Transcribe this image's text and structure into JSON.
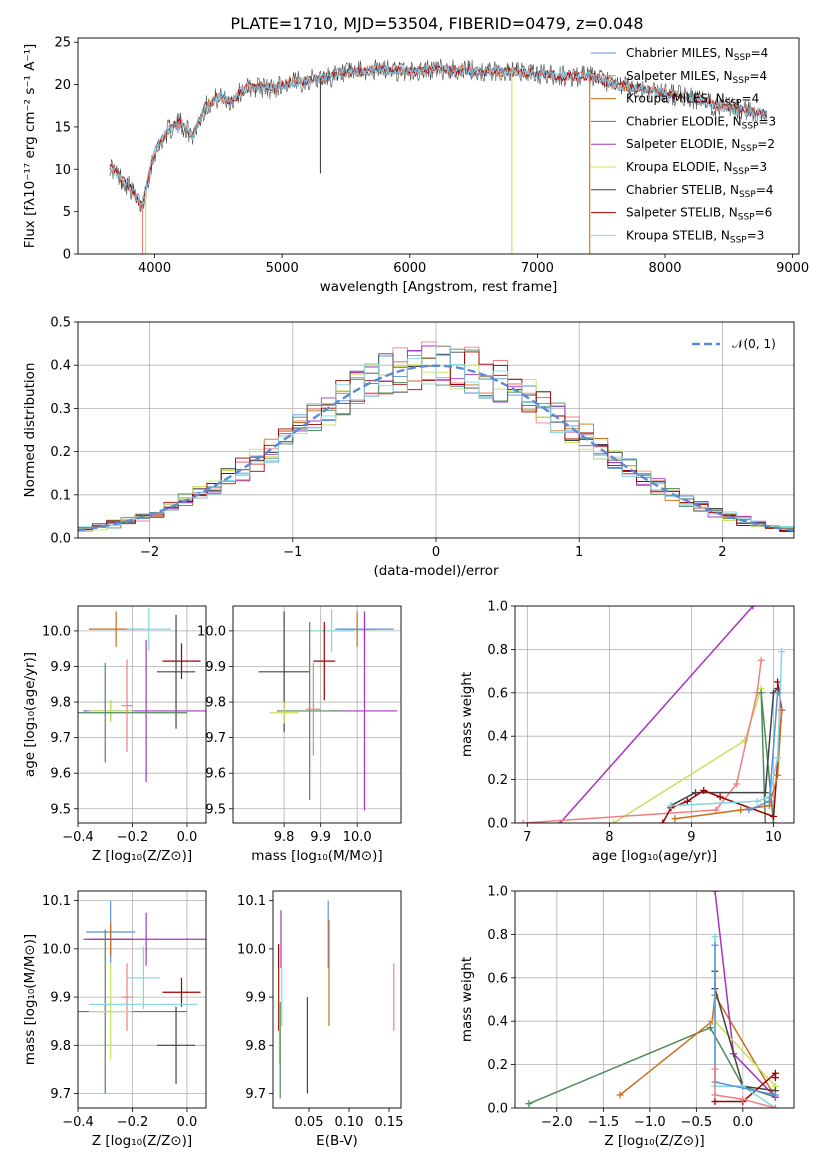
{
  "figure": {
    "title": "PLATE=1710, MJD=53504, FIBERID=0479, z=0.048",
    "colors": {
      "Chabrier MILES": "#5b93d8",
      "Salpeter MILES": "#f08080",
      "Kroupa MILES": "#cc6d1e",
      "Chabrier ELODIE": "#4f8a5b",
      "Salpeter ELODIE": "#a634c0",
      "Kroupa ELODIE": "#c8e05a",
      "Chabrier STELIB": "#444444",
      "Salpeter STELIB": "#a00000",
      "Kroupa STELIB": "#7fd8e0",
      "normal": "#5b8ad8",
      "pink": "#e07fbf"
    }
  },
  "chart_data": [
    {
      "id": "spectrum",
      "type": "line",
      "xlabel": "wavelength [Angstrom, rest frame]",
      "ylabel": "Flux [fλ10⁻¹⁷ erg cm⁻² s⁻¹ A⁻¹]",
      "xlim": [
        3400,
        9050
      ],
      "ylim": [
        0,
        25.5
      ],
      "xticks": [
        4000,
        5000,
        6000,
        7000,
        8000,
        9000
      ],
      "yticks": [
        0,
        5,
        10,
        15,
        20,
        25
      ],
      "grid": false,
      "legend_position": "top-right",
      "continuum": {
        "x": [
          3650,
          3700,
          3800,
          3900,
          3950,
          4000,
          4100,
          4200,
          4300,
          4400,
          4500,
          4600,
          4700,
          4800,
          4900,
          5000,
          5200,
          5400,
          5600,
          5800,
          6000,
          6200,
          6400,
          6600,
          6800,
          7000,
          7200,
          7400,
          7600,
          7800,
          8000,
          8200,
          8400,
          8600,
          8800
        ],
        "y": [
          10.5,
          9.5,
          8.0,
          5.5,
          9.0,
          12.0,
          14.5,
          15.5,
          14.0,
          17.5,
          18.5,
          18.0,
          19.5,
          19.8,
          19.5,
          20.0,
          20.5,
          21.0,
          21.5,
          21.8,
          21.5,
          21.8,
          21.7,
          21.5,
          21.5,
          21.3,
          21.0,
          21.0,
          20.0,
          19.5,
          19.0,
          18.5,
          17.5,
          17.0,
          16.5
        ]
      },
      "dips": [
        {
          "x": 3905,
          "y": 0.0,
          "series": "Salpeter MILES"
        },
        {
          "x": 3930,
          "y": 0.0,
          "series": "Kroupa ELODIE"
        },
        {
          "x": 5300,
          "y": 9.5,
          "series": "Chabrier STELIB"
        },
        {
          "x": 6800,
          "y": 0.0,
          "series": "Kroupa ELODIE"
        },
        {
          "x": 7410,
          "y": 0.0,
          "series": "Kroupa MILES"
        }
      ],
      "legend": [
        {
          "label": "Chabrier MILES, N",
          "sub": "SSP",
          "value": "=4"
        },
        {
          "label": "Salpeter MILES, N",
          "sub": "SSP",
          "value": "=4"
        },
        {
          "label": "Kroupa MILES, N",
          "sub": "SSP",
          "value": "=4"
        },
        {
          "label": "Chabrier ELODIE, N",
          "sub": "SSP",
          "value": "=3"
        },
        {
          "label": "Salpeter ELODIE, N",
          "sub": "SSP",
          "value": "=2"
        },
        {
          "label": "Kroupa ELODIE, N",
          "sub": "SSP",
          "value": "=3"
        },
        {
          "label": "Chabrier STELIB, N",
          "sub": "SSP",
          "value": "=4"
        },
        {
          "label": "Salpeter STELIB, N",
          "sub": "SSP",
          "value": "=6"
        },
        {
          "label": "Kroupa STELIB, N",
          "sub": "SSP",
          "value": "=3"
        }
      ]
    },
    {
      "id": "residuals",
      "type": "line",
      "xlabel": "(data-model)/error",
      "ylabel": "Normed distribution",
      "xlim": [
        -2.5,
        2.5
      ],
      "ylim": [
        0,
        0.5
      ],
      "xticks": [
        -2,
        -1,
        0,
        1,
        2
      ],
      "xticklabels": [
        "−2",
        "−1",
        "0",
        "1",
        "2"
      ],
      "yticks": [
        0.0,
        0.1,
        0.2,
        0.3,
        0.4,
        0.5
      ],
      "yticklabels": [
        "0.0",
        "0.1",
        "0.2",
        "0.3",
        "0.4",
        "0.5"
      ],
      "grid": true,
      "legend_position": "top-right",
      "legend": [
        {
          "label": "𝒩(0, 1)"
        }
      ],
      "hist_bin_width": 0.1
    },
    {
      "id": "age_vs_Z",
      "type": "scatter",
      "xlabel": "Z [log₁₀(Z/Z⊙)]",
      "ylabel": "age  [log₁₀(age/yr)]",
      "xlim": [
        -0.4,
        0.07
      ],
      "ylim": [
        9.46,
        10.07
      ],
      "xticks": [
        -0.4,
        -0.2,
        0.0
      ],
      "xticklabels": [
        "−0.4",
        "−0.2",
        "0.0"
      ],
      "yticks": [
        9.5,
        9.6,
        9.7,
        9.8,
        9.9,
        10.0
      ],
      "yticklabels": [
        "9.5",
        "9.6",
        "9.7",
        "9.8",
        "9.9",
        "10.0"
      ],
      "grid": true,
      "crosses": [
        {
          "series": "Kroupa MILES",
          "x": -0.26,
          "xe": 0.1,
          "y": 10.005,
          "ye": 0.05
        },
        {
          "series": "Kroupa STELIB",
          "x": -0.14,
          "xe": 0.08,
          "y": 10.005,
          "ye": 0.06
        },
        {
          "series": "Salpeter STELIB",
          "x": -0.02,
          "xe": 0.07,
          "y": 9.915,
          "ye": 0.05
        },
        {
          "series": "Chabrier STELIB",
          "x": -0.04,
          "xe": 0.07,
          "y": 9.885,
          "ye": 0.16
        },
        {
          "series": "Salpeter ELODIE",
          "x": -0.15,
          "xe": 0.23,
          "y": 9.775,
          "ye": 0.2
        },
        {
          "series": "Chabrier MILES",
          "x": -0.28,
          "xe": 0.09,
          "y": 9.775,
          "ye": 0.03
        },
        {
          "series": "Kroupa ELODIE",
          "x": -0.28,
          "xe": 0.08,
          "y": 9.775,
          "ye": 0.03
        },
        {
          "series": "Chabrier ELODIE",
          "x": -0.3,
          "xe": 0.3,
          "y": 9.77,
          "ye": 0.14
        },
        {
          "series": "Salpeter MILES",
          "x": -0.22,
          "xe": 0.02,
          "y": 9.79,
          "ye": 0.13
        }
      ]
    },
    {
      "id": "age_vs_mass",
      "type": "scatter",
      "xlabel": "mass [log₁₀(M/M⊙)]",
      "ylabel": "",
      "xlim": [
        9.66,
        10.12
      ],
      "ylim": [
        9.46,
        10.07
      ],
      "xticks": [
        9.8,
        9.9,
        10.0
      ],
      "xticklabels": [
        "9.8",
        "9.9",
        "10.0"
      ],
      "yticks": [
        9.5,
        9.6,
        9.7,
        9.8,
        9.9,
        10.0
      ],
      "yticklabels": [
        "9.5",
        "9.6",
        "9.7",
        "9.8",
        "9.9",
        "10.0"
      ],
      "grid": true,
      "crosses": [
        {
          "series": "Kroupa STELIB",
          "x": 9.93,
          "xe": 0.06,
          "y": 10.0,
          "ye": 0.06
        },
        {
          "series": "Kroupa MILES",
          "x": 10.0,
          "xe": 0.05,
          "y": 10.005,
          "ye": 0.05
        },
        {
          "series": "Chabrier MILES",
          "x": 10.02,
          "xe": 0.08,
          "y": 10.005,
          "ye": 0.04
        },
        {
          "series": "Salpeter STELIB",
          "x": 9.91,
          "xe": 0.03,
          "y": 9.915,
          "ye": 0.11
        },
        {
          "series": "Chabrier STELIB",
          "x": 9.8,
          "xe": 0.07,
          "y": 9.885,
          "ye": 0.17
        },
        {
          "series": "Salpeter ELODIE",
          "x": 10.02,
          "xe": 0.09,
          "y": 9.775,
          "ye": 0.28
        },
        {
          "series": "Chabrier ELODIE",
          "x": 9.87,
          "xe": 0.09,
          "y": 9.775,
          "ye": 0.25
        },
        {
          "series": "Kroupa ELODIE",
          "x": 9.8,
          "xe": 0.04,
          "y": 9.77,
          "ye": 0.03
        },
        {
          "series": "Salpeter MILES",
          "x": 9.88,
          "xe": 0.02,
          "y": 9.78,
          "ye": 0.13
        }
      ]
    },
    {
      "id": "weight_vs_age",
      "type": "line",
      "xlabel": "age  [log₁₀(age/yr)]",
      "ylabel": "mass weight",
      "xlim": [
        6.85,
        10.25
      ],
      "ylim": [
        0,
        1.0
      ],
      "xticks": [
        7,
        8,
        9,
        10
      ],
      "yticks": [
        0.0,
        0.2,
        0.4,
        0.6,
        0.8,
        1.0
      ],
      "yticklabels": [
        "0.0",
        "0.2",
        "0.4",
        "0.6",
        "0.8",
        "1.0"
      ],
      "grid": true,
      "series": [
        {
          "name": "Salpeter ELODIE",
          "x": [
            7.4,
            9.75
          ],
          "y": [
            0.0,
            1.0
          ]
        },
        {
          "name": "Kroupa ELODIE",
          "x": [
            8.05,
            9.65,
            9.85
          ],
          "y": [
            0.0,
            0.38,
            0.62
          ]
        },
        {
          "name": "Salpeter MILES",
          "x": [
            6.95,
            9.3,
            9.55,
            9.8,
            9.85
          ],
          "y": [
            0.0,
            0.06,
            0.18,
            0.6,
            0.75
          ]
        },
        {
          "name": "Chabrier ELODIE",
          "x": [
            9.9,
            9.85,
            10.0
          ],
          "y": [
            0.0,
            0.6,
            0.0
          ]
        },
        {
          "name": "Chabrier STELIB",
          "x": [
            8.75,
            9.05,
            9.9,
            10.0,
            10.05
          ],
          "y": [
            0.08,
            0.14,
            0.14,
            0.6,
            0.62
          ]
        },
        {
          "name": "Salpeter STELIB",
          "x": [
            8.65,
            8.75,
            8.95,
            9.15,
            9.35,
            10.0,
            10.1,
            10.05
          ],
          "y": [
            0.0,
            0.07,
            0.1,
            0.15,
            0.12,
            0.03,
            0.52,
            0.65
          ]
        },
        {
          "name": "Kroupa MILES",
          "x": [
            8.8,
            9.6,
            9.95,
            10.05,
            10.1
          ],
          "y": [
            0.02,
            0.06,
            0.08,
            0.22,
            0.52
          ]
        },
        {
          "name": "Kroupa STELIB",
          "x": [
            8.75,
            9.8,
            9.95,
            10.05,
            10.1
          ],
          "y": [
            0.08,
            0.1,
            0.12,
            0.3,
            0.79
          ]
        },
        {
          "name": "Chabrier MILES",
          "x": [
            9.7,
            9.95,
            10.05
          ],
          "y": [
            0.06,
            0.1,
            0.6
          ]
        }
      ]
    },
    {
      "id": "mass_vs_Z",
      "type": "scatter",
      "xlabel": "Z [log₁₀(Z/Z⊙)]",
      "ylabel": "mass [log₁₀(M/M⊙)]",
      "xlim": [
        -0.4,
        0.07
      ],
      "ylim": [
        9.67,
        10.12
      ],
      "xticks": [
        -0.4,
        -0.2,
        0.0
      ],
      "xticklabels": [
        "−0.4",
        "−0.2",
        "0.0"
      ],
      "yticks": [
        9.7,
        9.8,
        9.9,
        10.0,
        10.1
      ],
      "yticklabels": [
        "9.7",
        "9.8",
        "9.9",
        "10.0",
        "10.1"
      ],
      "grid": true,
      "crosses": [
        {
          "series": "Chabrier MILES",
          "x": -0.28,
          "xe": 0.09,
          "y": 10.035,
          "ye": 0.065
        },
        {
          "series": "Kroupa MILES",
          "x": -0.28,
          "xe": 0.08,
          "y": 10.02,
          "ye": 0.035
        },
        {
          "series": "Salpeter ELODIE",
          "x": -0.15,
          "xe": 0.23,
          "y": 10.02,
          "ye": 0.055
        },
        {
          "series": "Kroupa STELIB",
          "x": -0.16,
          "xe": 0.06,
          "y": 9.94,
          "ye": 0.065
        },
        {
          "series": "Salpeter STELIB",
          "x": -0.02,
          "xe": 0.07,
          "y": 9.91,
          "ye": 0.03
        },
        {
          "series": "Salpeter MILES",
          "x": -0.22,
          "xe": 0.02,
          "y": 9.9,
          "ye": 0.07
        },
        {
          "series": "Chabrier ELODIE",
          "x": -0.3,
          "xe": 0.3,
          "y": 9.87,
          "ye": 0.17
        },
        {
          "series": "Kroupa ELODIE",
          "x": -0.28,
          "xe": 0.08,
          "y": 9.87,
          "ye": 0.1
        },
        {
          "series": "Chabrier STELIB",
          "x": -0.04,
          "xe": 0.07,
          "y": 9.8,
          "ye": 0.08
        },
        {
          "series": "Kroupa STELIB",
          "x": -0.16,
          "xe": 0.2,
          "y": 9.885,
          "ye": 0.0
        }
      ]
    },
    {
      "id": "mass_vs_ebv",
      "type": "scatter",
      "xlabel": "E(B-V)",
      "ylabel": "",
      "xlim": [
        0.005,
        0.165
      ],
      "ylim": [
        9.67,
        10.12
      ],
      "xticks": [
        0.05,
        0.1,
        0.15
      ],
      "xticklabels": [
        "0.05",
        "0.10",
        "0.15"
      ],
      "yticks": [
        9.7,
        9.8,
        9.9,
        10.0,
        10.1
      ],
      "yticklabels": [
        "9.7",
        "9.8",
        "9.9",
        "10.0",
        "10.1"
      ],
      "grid": false,
      "bars": [
        {
          "series": "Salpeter STELIB",
          "x": 0.012,
          "y": 9.92,
          "ye": 0.09
        },
        {
          "series": "Kroupa ELODIE",
          "x": 0.013,
          "y": 9.86,
          "ye": 0.1
        },
        {
          "series": "Salpeter ELODIE",
          "x": 0.015,
          "y": 10.02,
          "ye": 0.06
        },
        {
          "series": "Chabrier ELODIE",
          "x": 0.014,
          "y": 9.79,
          "ye": 0.1
        },
        {
          "series": "Kroupa STELIB",
          "x": 0.016,
          "y": 9.9,
          "ye": 0.06
        },
        {
          "series": "Chabrier STELIB",
          "x": 0.048,
          "y": 9.8,
          "ye": 0.1
        },
        {
          "series": "Chabrier MILES",
          "x": 0.074,
          "y": 10.03,
          "ye": 0.07
        },
        {
          "series": "Kroupa MILES",
          "x": 0.075,
          "y": 9.95,
          "ye": 0.11
        },
        {
          "series": "Salpeter MILES",
          "x": 0.156,
          "y": 9.9,
          "ye": 0.07
        }
      ]
    },
    {
      "id": "weight_vs_Z",
      "type": "line",
      "xlabel": "Z [log₁₀(Z/Z⊙)]",
      "ylabel": "mass weight",
      "xlim": [
        -2.45,
        0.55
      ],
      "ylim": [
        0,
        1.0
      ],
      "xticks": [
        -2.0,
        -1.5,
        -1.0,
        -0.5,
        0.0
      ],
      "xticklabels": [
        "−2.0",
        "−1.5",
        "−1.0",
        "−0.5",
        "0.0"
      ],
      "yticks": [
        0.0,
        0.2,
        0.4,
        0.6,
        0.8,
        1.0
      ],
      "yticklabels": [
        "0.0",
        "0.2",
        "0.4",
        "0.6",
        "0.8",
        "1.0"
      ],
      "grid": true,
      "series": [
        {
          "name": "Chabrier ELODIE",
          "x": [
            -2.3,
            -0.35,
            0.0,
            0.35
          ],
          "y": [
            0.02,
            0.37,
            0.1,
            0.05
          ]
        },
        {
          "name": "Kroupa MILES",
          "x": [
            -1.32,
            -0.33,
            -0.3,
            0.35
          ],
          "y": [
            0.06,
            0.4,
            0.52,
            0.05
          ]
        },
        {
          "name": "Salpeter ELODIE",
          "x": [
            -0.3,
            -0.1,
            0.35
          ],
          "y": [
            1.0,
            0.25,
            0.05
          ]
        },
        {
          "name": "Kroupa ELODIE",
          "x": [
            -0.3,
            -0.3,
            0.35
          ],
          "y": [
            0.6,
            0.4,
            0.1
          ]
        },
        {
          "name": "Chabrier STELIB",
          "x": [
            -0.3,
            -0.3,
            0.0,
            0.35
          ],
          "y": [
            0.63,
            0.55,
            0.1,
            0.08
          ]
        },
        {
          "name": "Salpeter STELIB",
          "x": [
            -0.3,
            0.0,
            0.35,
            0.35
          ],
          "y": [
            0.03,
            0.03,
            0.16,
            0.14
          ]
        },
        {
          "name": "Kroupa STELIB",
          "x": [
            -0.3,
            -0.3,
            0.0,
            0.35
          ],
          "y": [
            0.79,
            0.1,
            0.1,
            0.0
          ]
        },
        {
          "name": "Chabrier MILES",
          "x": [
            -0.3,
            -0.3,
            0.35
          ],
          "y": [
            0.75,
            0.12,
            0.06
          ]
        },
        {
          "name": "Salpeter MILES",
          "x": [
            -0.3,
            -0.3,
            0.0,
            0.35
          ],
          "y": [
            0.18,
            0.06,
            0.04,
            0.0
          ]
        }
      ]
    }
  ]
}
